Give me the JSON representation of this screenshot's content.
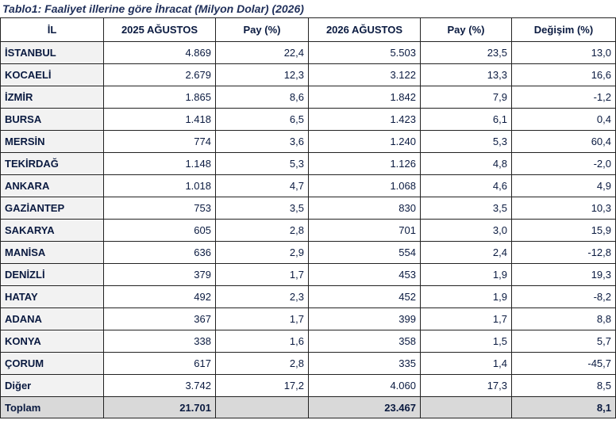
{
  "caption": "Tablo1: Faaliyet illerine göre İhracat (Milyon Dolar) (2026)",
  "headers": [
    "İL",
    "2025 AĞUSTOS",
    "Pay (%)",
    "2026 AĞUSTOS",
    "Pay (%)",
    "Değişim (%)"
  ],
  "rows": [
    [
      "İSTANBUL",
      "4.869",
      "22,4",
      "5.503",
      "23,5",
      "13,0"
    ],
    [
      "KOCAELİ",
      "2.679",
      "12,3",
      "3.122",
      "13,3",
      "16,6"
    ],
    [
      "İZMİR",
      "1.865",
      "8,6",
      "1.842",
      "7,9",
      "-1,2"
    ],
    [
      "BURSA",
      "1.418",
      "6,5",
      "1.423",
      "6,1",
      "0,4"
    ],
    [
      "MERSİN",
      "774",
      "3,6",
      "1.240",
      "5,3",
      "60,4"
    ],
    [
      "TEKİRDAĞ",
      "1.148",
      "5,3",
      "1.126",
      "4,8",
      "-2,0"
    ],
    [
      "ANKARA",
      "1.018",
      "4,7",
      "1.068",
      "4,6",
      "4,9"
    ],
    [
      "GAZİANTEP",
      "753",
      "3,5",
      "830",
      "3,5",
      "10,3"
    ],
    [
      "SAKARYA",
      "605",
      "2,8",
      "701",
      "3,0",
      "15,9"
    ],
    [
      "MANİSA",
      "636",
      "2,9",
      "554",
      "2,4",
      "-12,8"
    ],
    [
      "DENİZLİ",
      "379",
      "1,7",
      "453",
      "1,9",
      "19,3"
    ],
    [
      "HATAY",
      "492",
      "2,3",
      "452",
      "1,9",
      "-8,2"
    ],
    [
      "ADANA",
      "367",
      "1,7",
      "399",
      "1,7",
      "8,8"
    ],
    [
      "KONYA",
      "338",
      "1,6",
      "358",
      "1,5",
      "5,7"
    ],
    [
      "ÇORUM",
      "617",
      "2,8",
      "335",
      "1,4",
      "-45,7"
    ],
    [
      "Diğer",
      "3.742",
      "17,2",
      "4.060",
      "17,3",
      "8,5"
    ]
  ],
  "total": [
    "Toplam",
    "21.701",
    "",
    "23.467",
    "",
    "8,1"
  ]
}
